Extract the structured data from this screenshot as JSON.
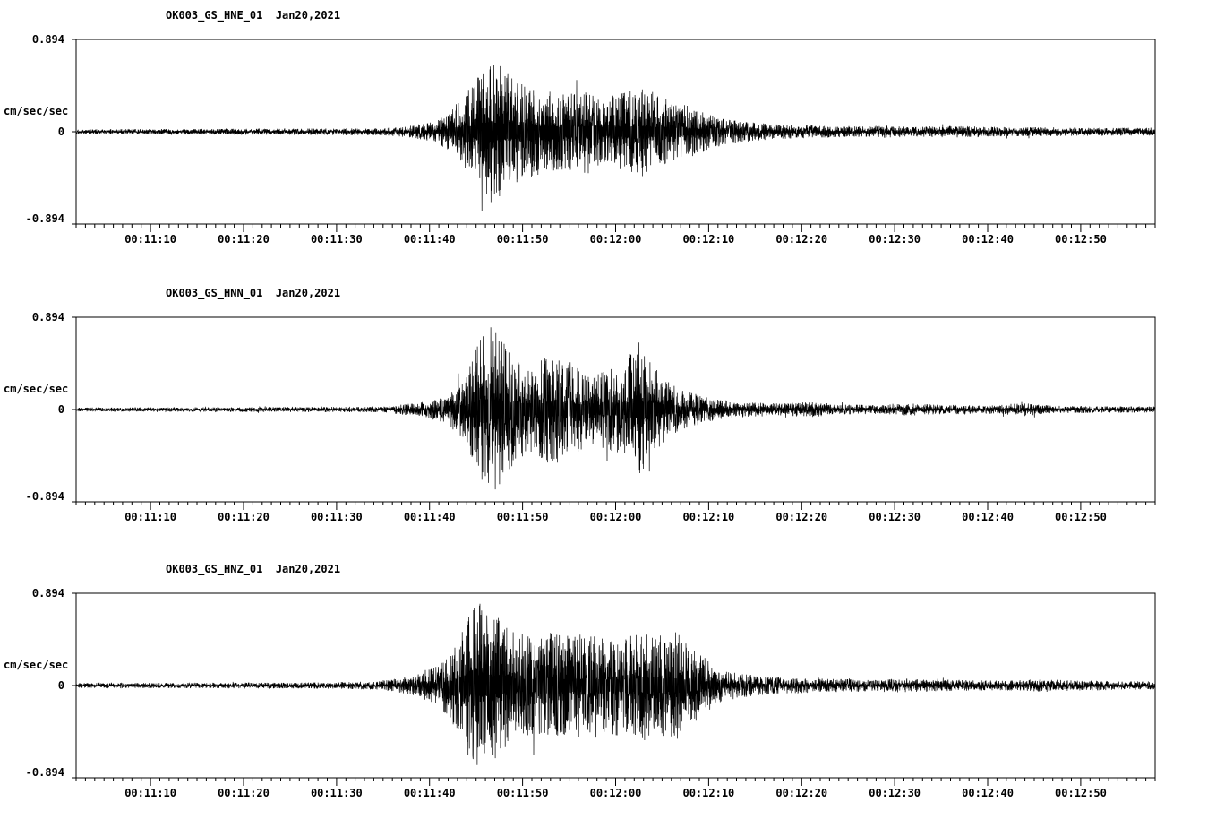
{
  "figure": {
    "background": "#ffffff",
    "trace_color": "#000000",
    "station": "OK003",
    "network": "GS",
    "date": "Jan20,2021"
  },
  "chart_data": [
    {
      "type": "line",
      "title": "OK003_GS_HNE_01  Jan20,2021",
      "ylabel": "cm/sec/sec",
      "ylim": [
        -0.894,
        0.894
      ],
      "y_tick_labels": [
        "0.894",
        "0",
        "-0.894"
      ],
      "x_start_time": "00:11:02",
      "x_end_time": "00:12:58",
      "duration_seconds": 116,
      "x_tick_labels": [
        "00:11:10",
        "00:11:20",
        "00:11:30",
        "00:11:40",
        "00:11:50",
        "00:12:00",
        "00:12:10",
        "00:12:20",
        "00:12:30",
        "00:12:40",
        "00:12:50"
      ],
      "x_tick_seconds": [
        8,
        18,
        28,
        38,
        48,
        58,
        68,
        78,
        88,
        98,
        108
      ],
      "grid": false,
      "legend": "none",
      "seed": 101,
      "envelope": {
        "t": [
          0,
          20,
          33,
          36,
          39,
          41,
          43,
          44.5,
          46,
          48,
          50,
          53,
          55,
          57,
          59,
          61,
          63,
          65,
          67,
          69,
          72,
          76,
          80,
          85,
          86,
          90,
          95,
          100,
          105,
          110,
          116
        ],
        "a": [
          0.025,
          0.03,
          0.035,
          0.06,
          0.12,
          0.3,
          0.5,
          0.83,
          0.6,
          0.5,
          0.42,
          0.38,
          0.42,
          0.35,
          0.42,
          0.45,
          0.35,
          0.3,
          0.22,
          0.15,
          0.1,
          0.07,
          0.06,
          0.05,
          0.065,
          0.05,
          0.06,
          0.045,
          0.045,
          0.04,
          0.04
        ]
      }
    },
    {
      "type": "line",
      "title": "OK003_GS_HNN_01  Jan20,2021",
      "ylabel": "cm/sec/sec",
      "ylim": [
        -0.894,
        0.894
      ],
      "y_tick_labels": [
        "0.894",
        "0",
        "-0.894"
      ],
      "x_start_time": "00:11:02",
      "x_end_time": "00:12:58",
      "duration_seconds": 116,
      "x_tick_labels": [
        "00:11:10",
        "00:11:20",
        "00:11:30",
        "00:11:40",
        "00:11:50",
        "00:12:00",
        "00:12:10",
        "00:12:20",
        "00:12:30",
        "00:12:40",
        "00:12:50"
      ],
      "x_tick_seconds": [
        8,
        18,
        28,
        38,
        48,
        58,
        68,
        78,
        88,
        98,
        108
      ],
      "grid": false,
      "legend": "none",
      "seed": 202,
      "envelope": {
        "t": [
          0,
          25,
          33,
          37,
          40,
          42,
          43.5,
          45,
          47,
          49,
          51,
          53,
          55,
          57,
          59,
          60.5,
          62,
          64,
          66,
          68,
          70,
          73,
          76,
          79,
          82,
          86,
          90,
          93,
          98,
          102,
          105,
          110,
          116
        ],
        "a": [
          0.02,
          0.025,
          0.03,
          0.07,
          0.15,
          0.35,
          0.8,
          0.83,
          0.55,
          0.45,
          0.55,
          0.5,
          0.35,
          0.4,
          0.45,
          0.72,
          0.45,
          0.25,
          0.18,
          0.12,
          0.09,
          0.07,
          0.06,
          0.08,
          0.05,
          0.045,
          0.06,
          0.05,
          0.04,
          0.065,
          0.04,
          0.035,
          0.03
        ]
      }
    },
    {
      "type": "line",
      "title": "OK003_GS_HNZ_01  Jan20,2021",
      "ylabel": "cm/sec/sec",
      "ylim": [
        -0.894,
        0.894
      ],
      "y_tick_labels": [
        "0.894",
        "0",
        "-0.894"
      ],
      "x_start_time": "00:11:02",
      "x_end_time": "00:12:58",
      "duration_seconds": 116,
      "x_tick_labels": [
        "00:11:10",
        "00:11:20",
        "00:11:30",
        "00:11:40",
        "00:11:50",
        "00:12:00",
        "00:12:10",
        "00:12:20",
        "00:12:30",
        "00:12:40",
        "00:12:50"
      ],
      "x_tick_seconds": [
        8,
        18,
        28,
        38,
        48,
        58,
        68,
        78,
        88,
        98,
        108
      ],
      "grid": false,
      "legend": "none",
      "seed": 303,
      "envelope": {
        "t": [
          0,
          25,
          32,
          36,
          39,
          41,
          43,
          45,
          47,
          49,
          51,
          53,
          55,
          57,
          59,
          61,
          63,
          64.5,
          66,
          68,
          70,
          73,
          76,
          80,
          85,
          88,
          92,
          96,
          100,
          104,
          108,
          112,
          116
        ],
        "a": [
          0.025,
          0.03,
          0.04,
          0.09,
          0.2,
          0.45,
          0.87,
          0.75,
          0.55,
          0.5,
          0.55,
          0.5,
          0.55,
          0.5,
          0.5,
          0.55,
          0.5,
          0.55,
          0.4,
          0.25,
          0.15,
          0.1,
          0.08,
          0.07,
          0.06,
          0.07,
          0.06,
          0.055,
          0.05,
          0.065,
          0.05,
          0.045,
          0.04
        ]
      }
    }
  ]
}
